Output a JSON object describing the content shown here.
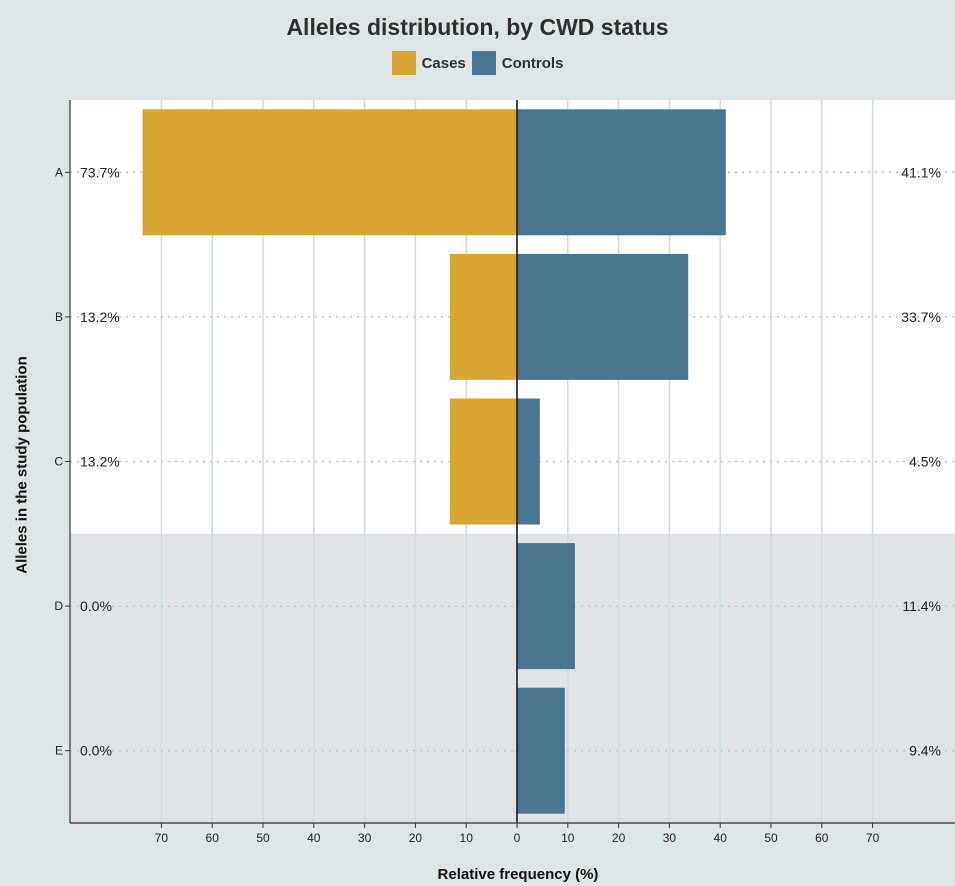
{
  "chart_data": {
    "type": "bar",
    "orientation": "horizontal-diverging",
    "title": "Alleles distribution, by CWD status",
    "xlabel": "Relative frequency (%)",
    "ylabel": "Alleles in the study population",
    "categories": [
      "A",
      "B",
      "C",
      "D",
      "E"
    ],
    "series": [
      {
        "name": "Cases",
        "values": [
          73.7,
          13.2,
          13.2,
          0.0,
          0.0
        ],
        "labels": [
          "73.7%",
          "13.2%",
          "13.2%",
          "0.0%",
          "0.0%"
        ],
        "color": "#d9a531",
        "side": "left"
      },
      {
        "name": "Controls",
        "values": [
          41.1,
          33.7,
          4.5,
          11.4,
          9.4
        ],
        "labels": [
          "41.1%",
          "33.7%",
          "4.5%",
          "11.4%",
          "9.4%"
        ],
        "color": "#4a7590",
        "side": "right"
      }
    ],
    "xticks": [
      "70",
      "60",
      "50",
      "40",
      "30",
      "20",
      "10",
      "0",
      "10",
      "20",
      "30",
      "40",
      "50",
      "60",
      "70"
    ],
    "xlim": [
      -80,
      80
    ],
    "highlighted_categories": [
      "D",
      "E"
    ],
    "legend_position": "top",
    "grid": true
  },
  "colors": {
    "background": "#dde5e6",
    "panel": "#ffffff",
    "highlight_band": "#dfe3e6",
    "cases": "#d9a531",
    "controls": "#4a7590"
  }
}
